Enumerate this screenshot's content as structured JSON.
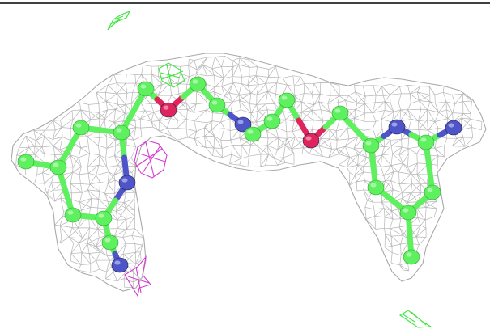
{
  "scene": {
    "subject": "ligand-in-electron-density-map",
    "colors": {
      "background": "#ffffff",
      "mesh": "#a9a9a9",
      "carbon": "#5ef05e",
      "carbon_stroke": "#2fa82f",
      "nitrogen": "#4d55c8",
      "oxygen": "#e0245e",
      "diff_density_positive": "#3fe63f",
      "diff_density_negative": "#d23cd2",
      "top_rule": "#000000"
    },
    "atom_types": [
      "C",
      "N",
      "O"
    ],
    "icons": [
      "density-mesh-icon",
      "ligand-molecule-icon",
      "difference-density-icon"
    ]
  }
}
